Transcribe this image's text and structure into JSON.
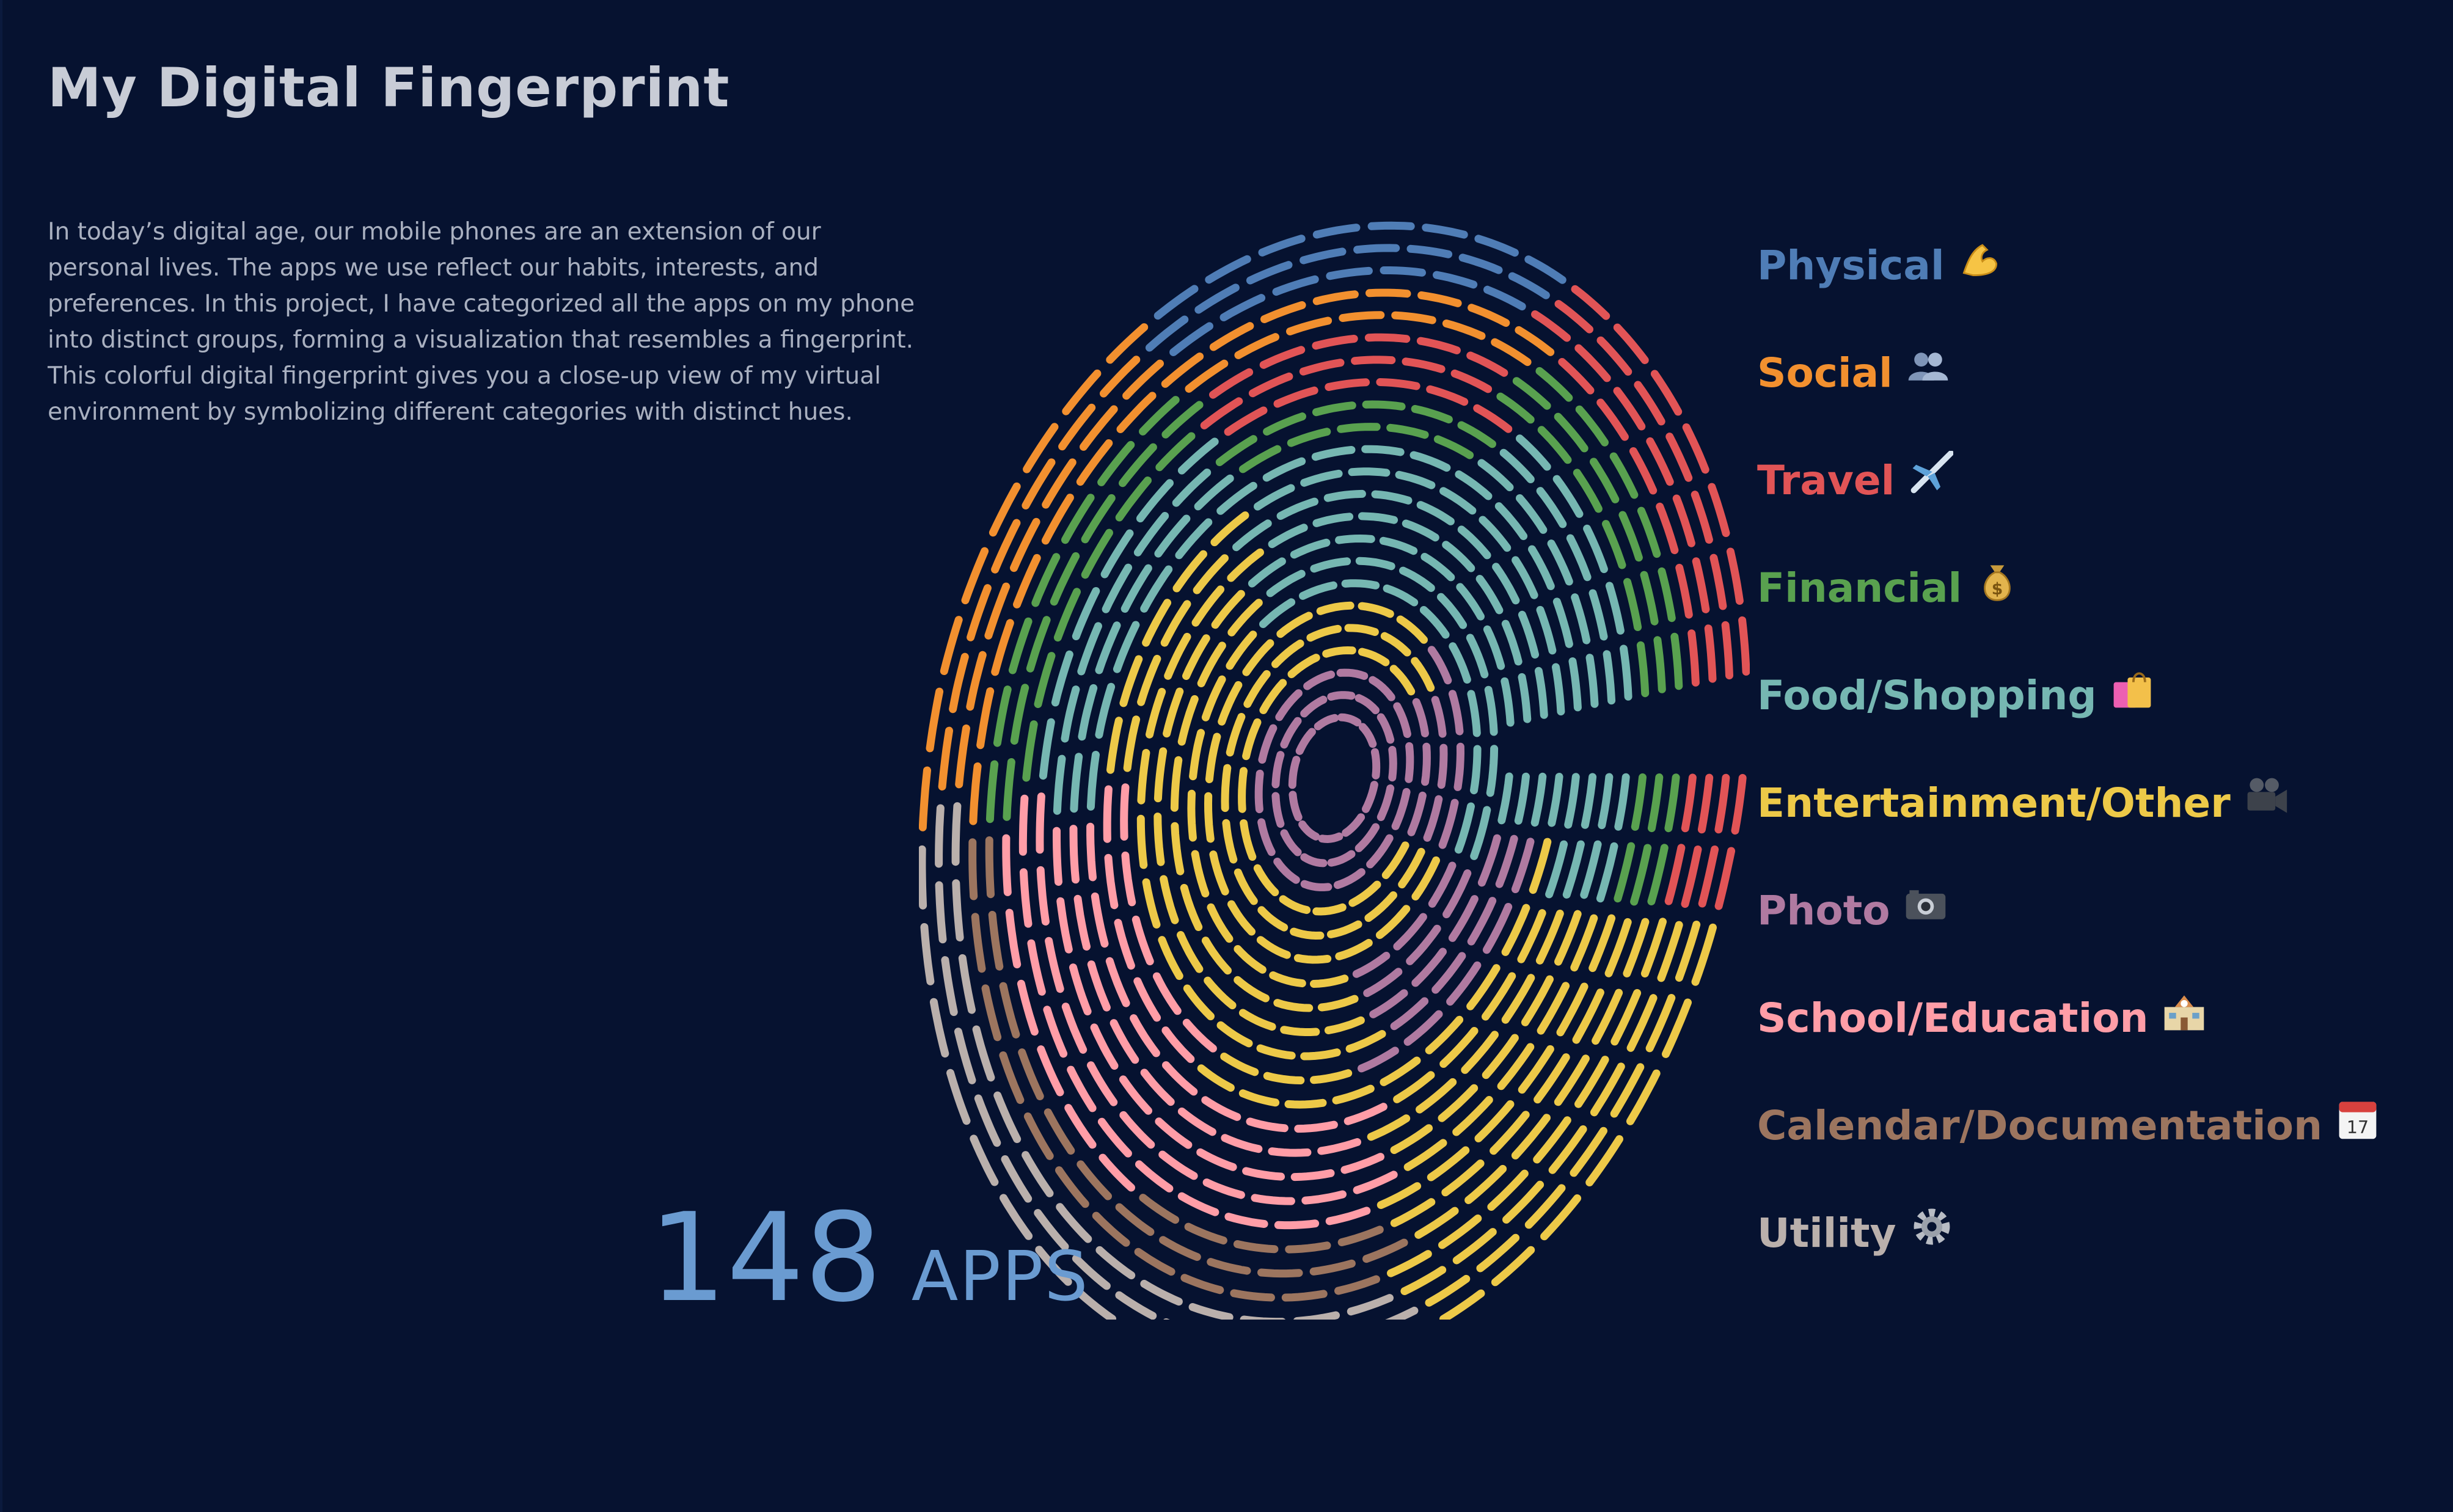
{
  "title": "My Digital Fingerprint",
  "intro": "In today’s digital age, our mobile phones are an extension of our personal lives. The apps we use reflect our habits, interests, and preferences. In this project, I have categorized all the apps on my phone into distinct groups, forming a visualization that resembles a fingerprint. This colorful digital fingerprint gives you a close-up view of my virtual environment by symbolizing different categories with distinct hues.",
  "count": {
    "number": "148",
    "unit": "APPS"
  },
  "legend": [
    {
      "label": "Physical",
      "color": "#4f7db6",
      "icon": "flexed-biceps-icon"
    },
    {
      "label": "Social",
      "color": "#f2902f",
      "icon": "busts-icon"
    },
    {
      "label": "Travel",
      "color": "#e15456",
      "icon": "airplane-icon"
    },
    {
      "label": "Financial",
      "color": "#59a14f",
      "icon": "money-bag-icon"
    },
    {
      "label": "Food/Shopping",
      "color": "#76b7b2",
      "icon": "shopping-bags-icon"
    },
    {
      "label": "Entertainment/Other",
      "color": "#edc948",
      "icon": "movie-camera-icon"
    },
    {
      "label": "Photo",
      "color": "#b07aa1",
      "icon": "camera-icon"
    },
    {
      "label": "School/Education",
      "color": "#ff9da7",
      "icon": "school-icon"
    },
    {
      "label": "Calendar/Documentation",
      "color": "#9c755f",
      "icon": "calendar-icon"
    },
    {
      "label": "Utility",
      "color": "#bab0ac",
      "icon": "gear-icon"
    }
  ]
}
